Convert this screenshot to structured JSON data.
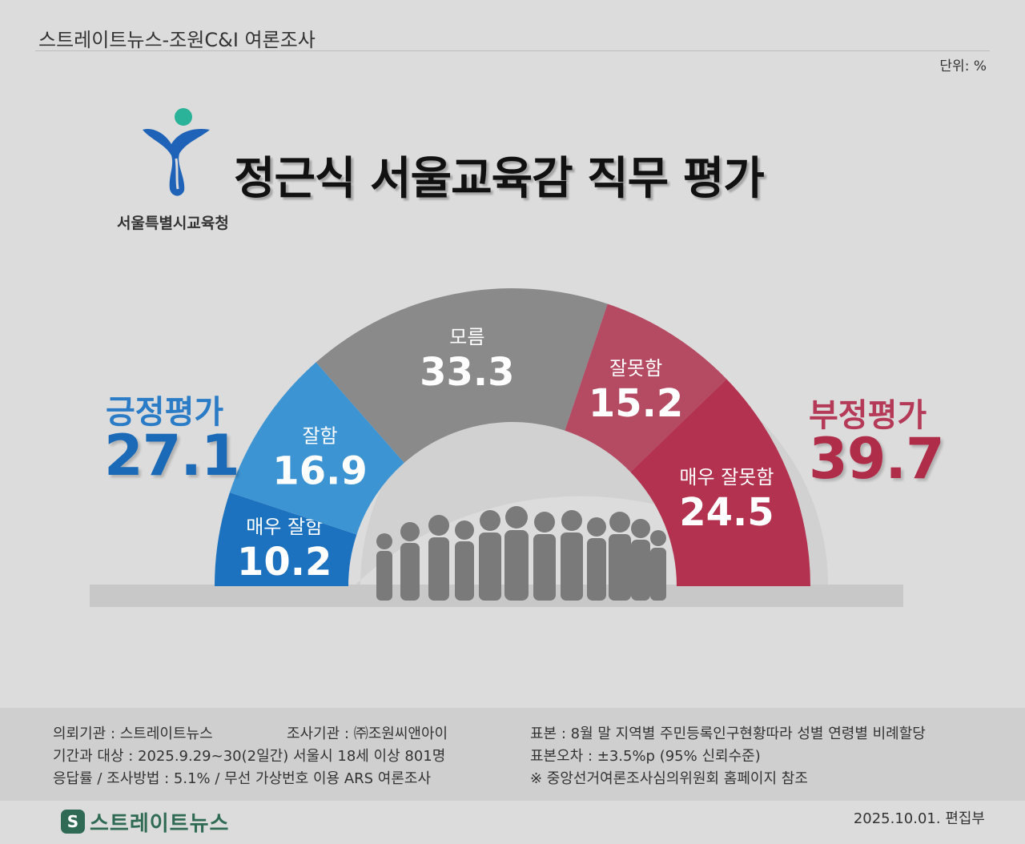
{
  "header": {
    "title": "스트레이트뉴스-조원C&I 여론조사",
    "unit": "단위: %"
  },
  "logo": {
    "org": "서울특별시교육청"
  },
  "title": "정근식 서울교육감 직무 평가",
  "summary": {
    "positive": {
      "label": "긍정평가",
      "value": "27.1"
    },
    "negative": {
      "label": "부정평가",
      "value": "39.7"
    }
  },
  "chart_data": {
    "type": "pie",
    "style": "semicircle-donut",
    "title": "정근식 서울교육감 직무 평가",
    "unit": "%",
    "categories": [
      "매우 잘함",
      "잘함",
      "모름",
      "잘못함",
      "매우 잘못함"
    ],
    "values": [
      10.2,
      16.9,
      33.3,
      15.2,
      24.5
    ],
    "colors": [
      "#1d72bf",
      "#3d94d3",
      "#8a8a8a",
      "#b54a63",
      "#b2324f"
    ]
  },
  "footer": {
    "client": "의뢰기관 : 스트레이트뉴스",
    "agency": "조사기관 : ㈜조원씨앤아이",
    "period": "기간과 대상 : 2025.9.29~30(2일간) 서울시  18세 이상 801명",
    "method": "응답률 / 조사방법 : 5.1% / 무선 가상번호 이용 ARS 여론조사",
    "sample": "표본 : 8월 말 지역별 주민등록인구현황따라 성별 연령별 비례할당",
    "error": "표본오차 : ±3.5%p (95% 신뢰수준)",
    "note": "※ 중앙선거여론조사심의위원회 홈페이지 참조"
  },
  "brand": {
    "name": "스트레이트뉴스",
    "date": "2025.10.01. 편집부"
  }
}
